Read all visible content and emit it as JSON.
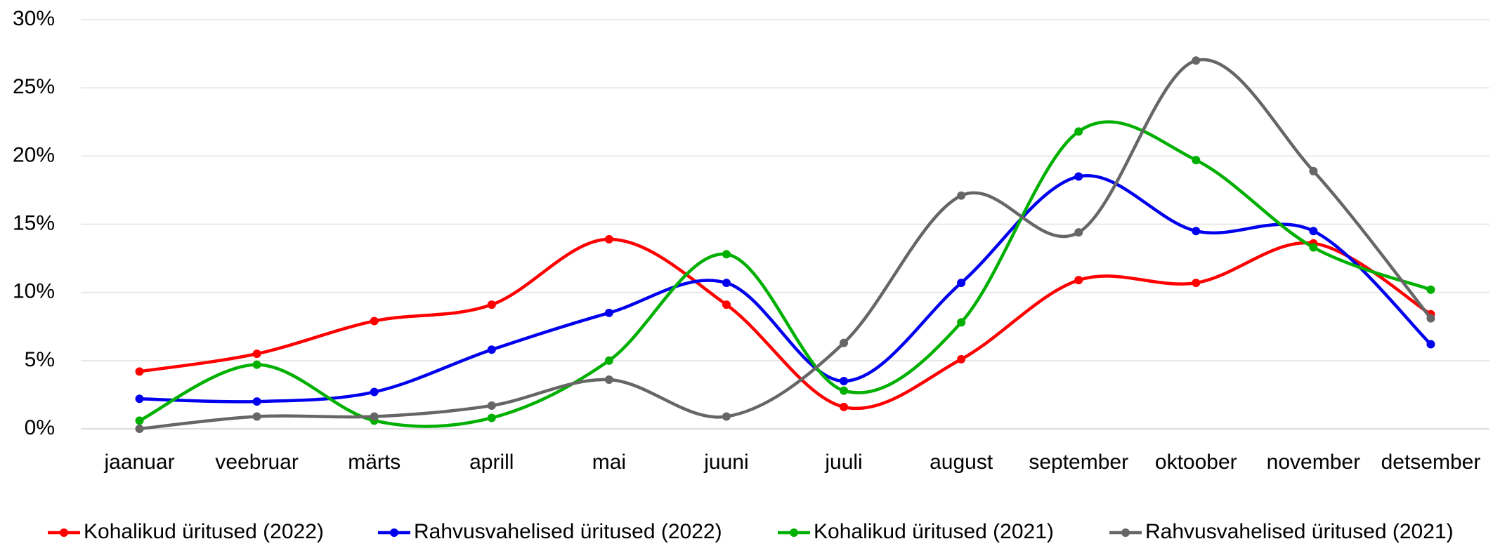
{
  "chart_data": {
    "type": "line",
    "categories": [
      "jaanuar",
      "veebruar",
      "märts",
      "aprill",
      "mai",
      "juuni",
      "juuli",
      "august",
      "september",
      "oktoober",
      "november",
      "detsember"
    ],
    "series": [
      {
        "name": "Kohalikud üritused (2022)",
        "color": "#ff0000",
        "values": [
          4.2,
          5.5,
          7.9,
          9.1,
          13.9,
          9.1,
          1.6,
          5.1,
          10.9,
          10.7,
          13.6,
          8.4
        ]
      },
      {
        "name": "Rahvusvahelised üritused (2022)",
        "color": "#0000ee",
        "values": [
          2.2,
          2.0,
          2.7,
          5.8,
          8.5,
          10.7,
          3.5,
          10.7,
          18.5,
          14.5,
          14.5,
          6.2
        ]
      },
      {
        "name": "Kohalikud üritused (2021)",
        "color": "#00b000",
        "values": [
          0.6,
          4.7,
          0.6,
          0.8,
          5.0,
          12.8,
          2.8,
          7.8,
          21.8,
          19.7,
          13.3,
          10.2
        ]
      },
      {
        "name": "Rahvusvahelised üritused (2021)",
        "color": "#666666",
        "values": [
          0,
          0.9,
          0.9,
          1.7,
          3.6,
          0.9,
          6.3,
          17.1,
          14.4,
          27.0,
          18.9,
          8.1
        ]
      }
    ],
    "ylim": [
      0,
      30
    ],
    "yticks": [
      {
        "value": 0,
        "label": "0%"
      },
      {
        "value": 5,
        "label": "5%"
      },
      {
        "value": 10,
        "label": "10%"
      },
      {
        "value": 15,
        "label": "15%"
      },
      {
        "value": 20,
        "label": "20%"
      },
      {
        "value": 25,
        "label": "25%"
      },
      {
        "value": 30,
        "label": "30%"
      }
    ],
    "grid": true,
    "smooth": true,
    "legend": "bottom"
  }
}
